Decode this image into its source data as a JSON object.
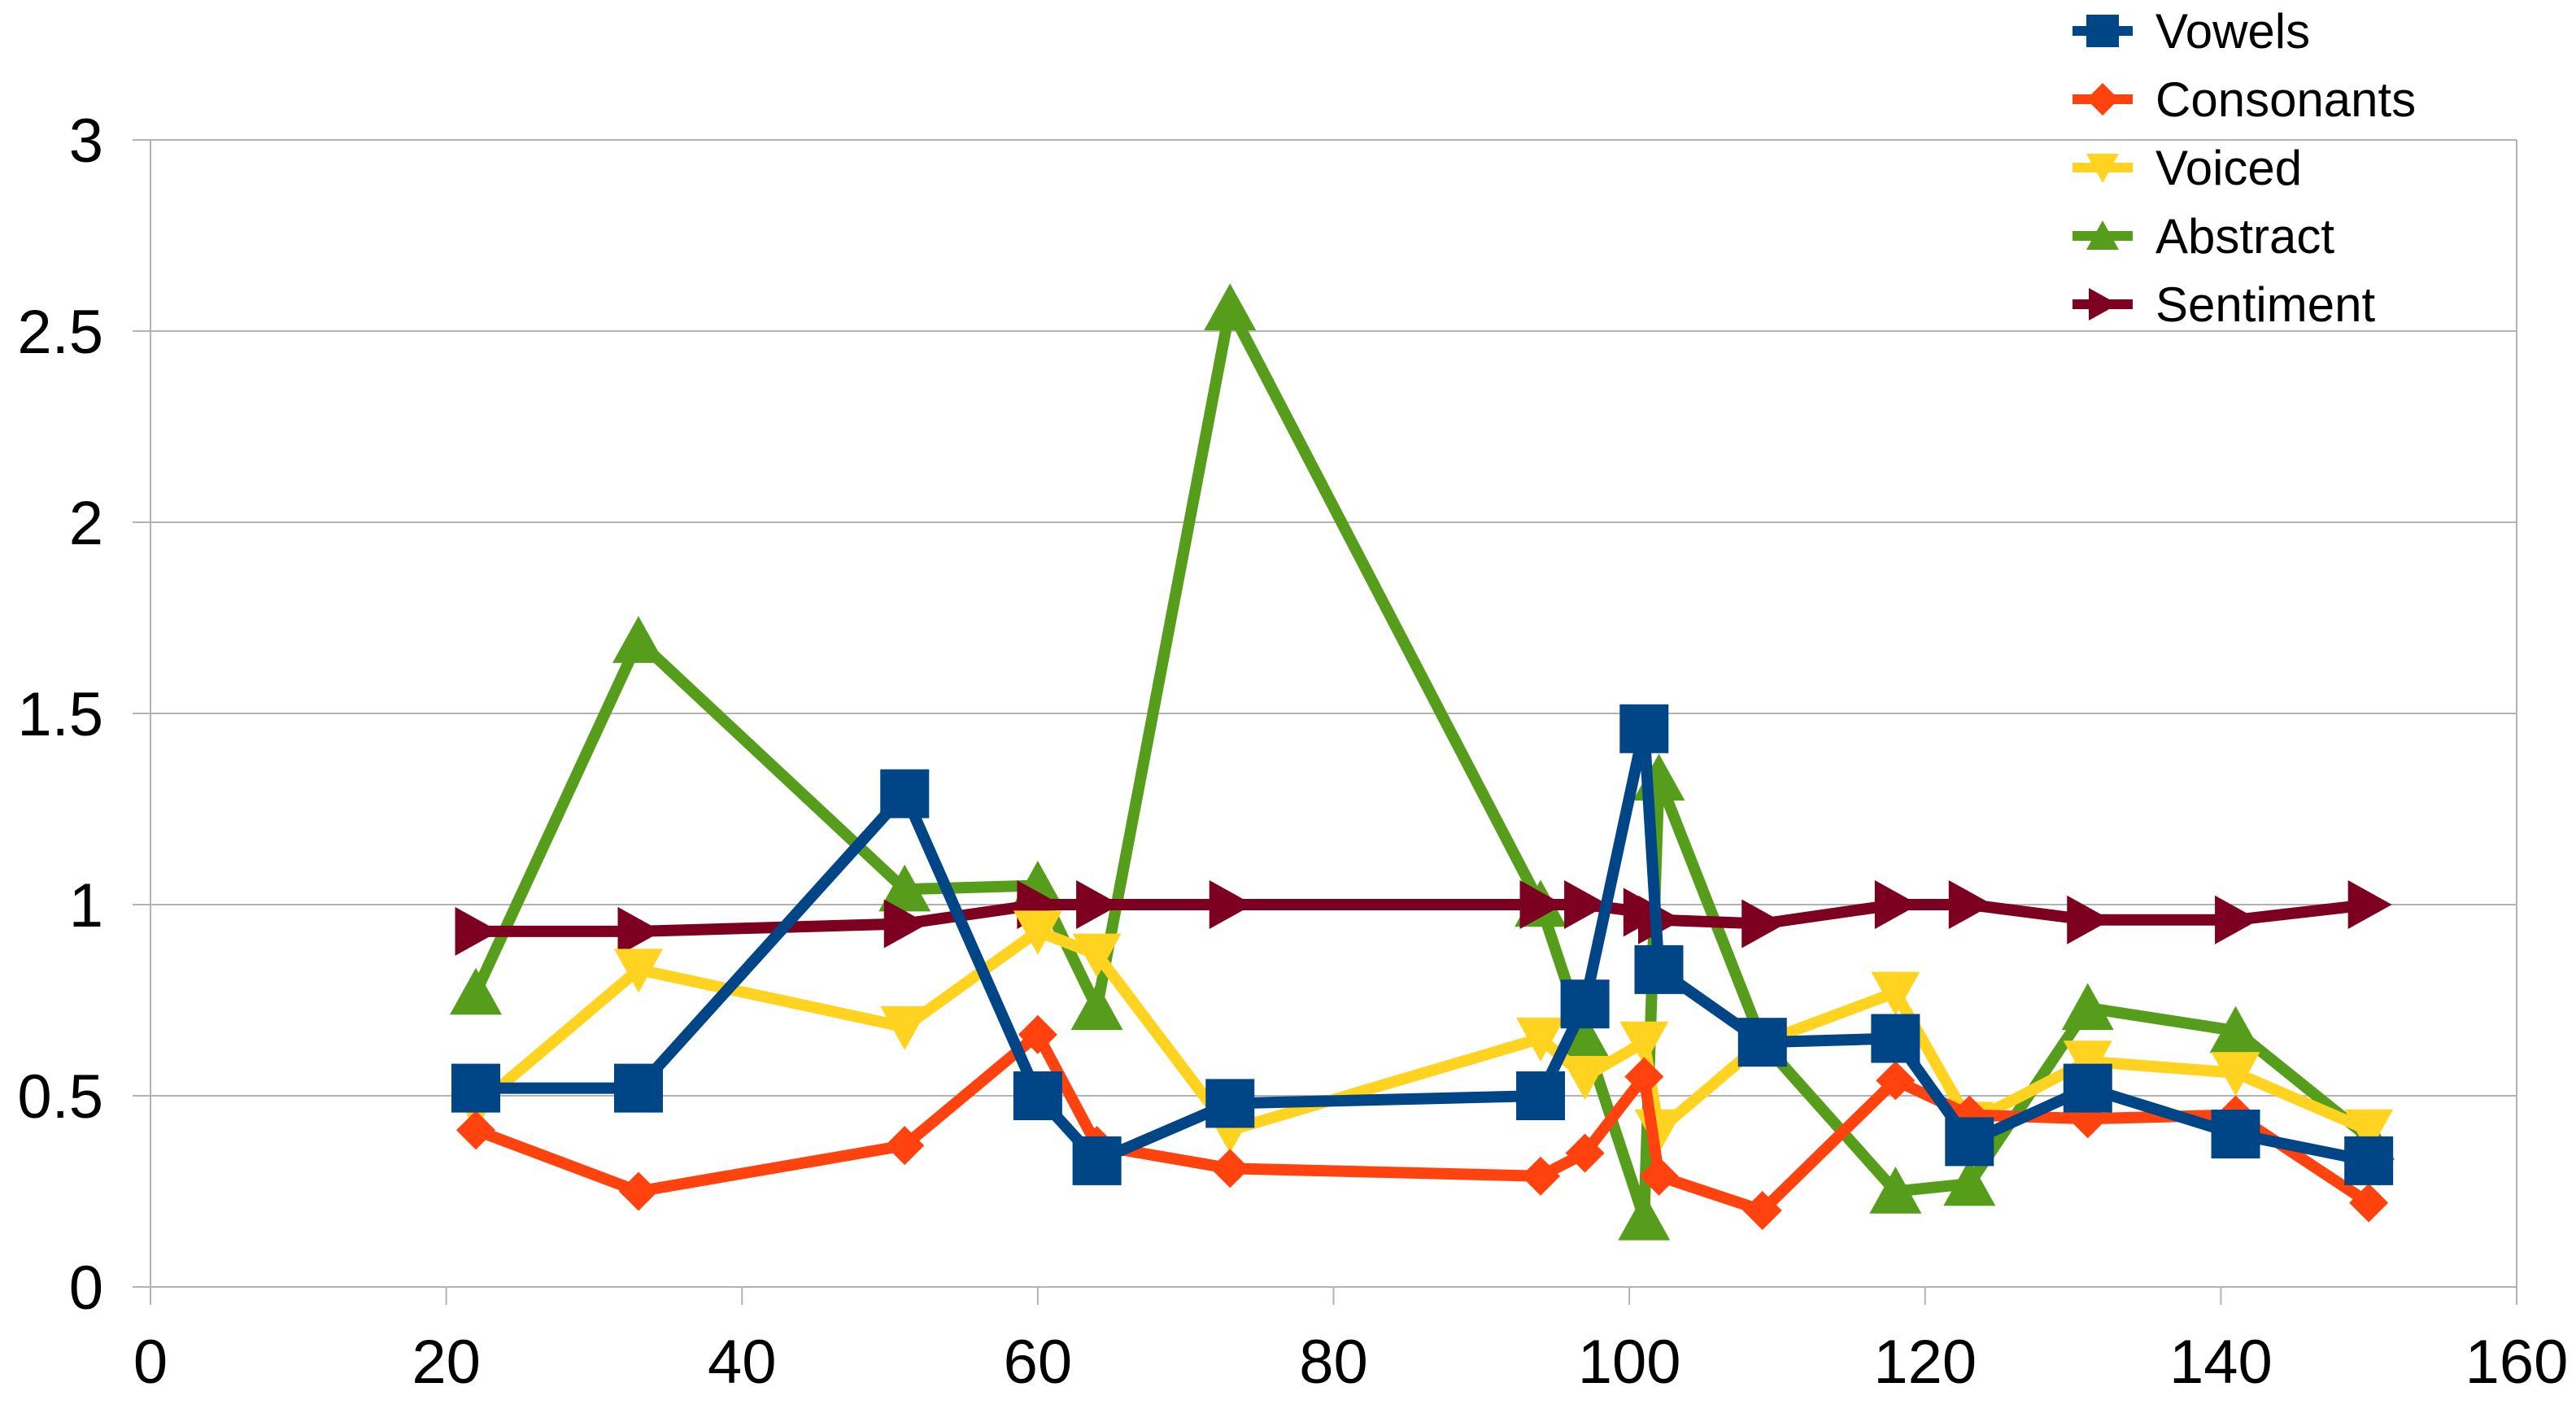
{
  "chart_data": {
    "type": "line",
    "title": "",
    "xlabel": "",
    "ylabel": "",
    "xlim": [
      0,
      160
    ],
    "ylim": [
      0,
      3
    ],
    "x_ticks": [
      "0",
      "20",
      "40",
      "60",
      "80",
      "100",
      "120",
      "140",
      "160"
    ],
    "y_ticks": [
      "0",
      "0.5",
      "1",
      "1.5",
      "2",
      "2.5",
      "3"
    ],
    "grid": "horizontal",
    "legend_position": "top-right",
    "series": [
      {
        "name": "Vowels",
        "color": "#004586",
        "marker": "square",
        "points": [
          [
            22,
            0.52
          ],
          [
            33,
            0.52
          ],
          [
            51,
            1.29
          ],
          [
            60,
            0.5
          ],
          [
            64,
            0.33
          ],
          [
            73,
            0.48
          ],
          [
            94,
            0.5
          ],
          [
            97,
            0.74
          ],
          [
            101,
            1.46
          ],
          [
            102,
            0.83
          ],
          [
            109,
            0.64
          ],
          [
            118,
            0.65
          ],
          [
            123,
            0.38
          ],
          [
            131,
            0.52
          ],
          [
            141,
            0.4
          ],
          [
            150,
            0.33
          ]
        ]
      },
      {
        "name": "Consonants",
        "color": "#ff420e",
        "marker": "diamond",
        "points": [
          [
            22,
            0.41
          ],
          [
            33,
            0.25
          ],
          [
            51,
            0.37
          ],
          [
            60,
            0.66
          ],
          [
            64,
            0.37
          ],
          [
            73,
            0.31
          ],
          [
            94,
            0.29
          ],
          [
            97,
            0.35
          ],
          [
            101,
            0.55
          ],
          [
            102,
            0.29
          ],
          [
            109,
            0.2
          ],
          [
            118,
            0.54
          ],
          [
            123,
            0.45
          ],
          [
            131,
            0.44
          ],
          [
            141,
            0.45
          ],
          [
            150,
            0.22
          ]
        ]
      },
      {
        "name": "Voiced",
        "color": "#ffd320",
        "marker": "triangle-down",
        "points": [
          [
            22,
            0.47
          ],
          [
            33,
            0.83
          ],
          [
            51,
            0.68
          ],
          [
            60,
            0.93
          ],
          [
            64,
            0.87
          ],
          [
            73,
            0.41
          ],
          [
            94,
            0.65
          ],
          [
            97,
            0.55
          ],
          [
            101,
            0.64
          ],
          [
            102,
            0.41
          ],
          [
            109,
            0.64
          ],
          [
            118,
            0.77
          ],
          [
            123,
            0.43
          ],
          [
            131,
            0.59
          ],
          [
            141,
            0.56
          ],
          [
            150,
            0.41
          ]
        ]
      },
      {
        "name": "Abstract",
        "color": "#579d1c",
        "marker": "triangle-up",
        "points": [
          [
            22,
            0.77
          ],
          [
            33,
            1.69
          ],
          [
            51,
            1.04
          ],
          [
            60,
            1.05
          ],
          [
            64,
            0.73
          ],
          [
            73,
            2.56
          ],
          [
            94,
            1.0
          ],
          [
            97,
            0.65
          ],
          [
            101,
            0.18
          ],
          [
            102,
            1.33
          ],
          [
            109,
            0.64
          ],
          [
            118,
            0.25
          ],
          [
            123,
            0.27
          ],
          [
            131,
            0.73
          ],
          [
            141,
            0.67
          ],
          [
            150,
            0.39
          ]
        ]
      },
      {
        "name": "Sentiment",
        "color": "#7e0021",
        "marker": "triangle-right",
        "points": [
          [
            22,
            0.93
          ],
          [
            33,
            0.93
          ],
          [
            51,
            0.95
          ],
          [
            60,
            1.0
          ],
          [
            64,
            1.0
          ],
          [
            73,
            1.0
          ],
          [
            94,
            1.0
          ],
          [
            97,
            1.0
          ],
          [
            101,
            0.98
          ],
          [
            102,
            0.96
          ],
          [
            109,
            0.95
          ],
          [
            118,
            1.0
          ],
          [
            123,
            1.0
          ],
          [
            131,
            0.96
          ],
          [
            141,
            0.96
          ],
          [
            150,
            1.0
          ]
        ]
      }
    ]
  }
}
